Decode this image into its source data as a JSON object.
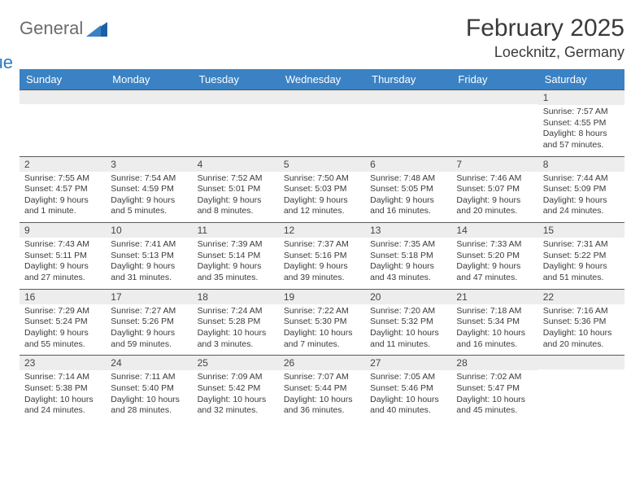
{
  "brand": {
    "part1": "General",
    "part2": "Blue"
  },
  "title": "February 2025",
  "location": "Loecknitz, Germany",
  "colors": {
    "header_bg": "#3a82c4",
    "header_text": "#ffffff",
    "daynum_bg": "#ededed",
    "rule": "#5a5a5a",
    "brand_gray": "#6c6c6c",
    "brand_blue": "#2f78bd"
  },
  "weekdays": [
    "Sunday",
    "Monday",
    "Tuesday",
    "Wednesday",
    "Thursday",
    "Friday",
    "Saturday"
  ],
  "weeks": [
    [
      {
        "n": "",
        "sr": "",
        "ss": "",
        "dl": ""
      },
      {
        "n": "",
        "sr": "",
        "ss": "",
        "dl": ""
      },
      {
        "n": "",
        "sr": "",
        "ss": "",
        "dl": ""
      },
      {
        "n": "",
        "sr": "",
        "ss": "",
        "dl": ""
      },
      {
        "n": "",
        "sr": "",
        "ss": "",
        "dl": ""
      },
      {
        "n": "",
        "sr": "",
        "ss": "",
        "dl": ""
      },
      {
        "n": "1",
        "sr": "Sunrise: 7:57 AM",
        "ss": "Sunset: 4:55 PM",
        "dl": "Daylight: 8 hours and 57 minutes."
      }
    ],
    [
      {
        "n": "2",
        "sr": "Sunrise: 7:55 AM",
        "ss": "Sunset: 4:57 PM",
        "dl": "Daylight: 9 hours and 1 minute."
      },
      {
        "n": "3",
        "sr": "Sunrise: 7:54 AM",
        "ss": "Sunset: 4:59 PM",
        "dl": "Daylight: 9 hours and 5 minutes."
      },
      {
        "n": "4",
        "sr": "Sunrise: 7:52 AM",
        "ss": "Sunset: 5:01 PM",
        "dl": "Daylight: 9 hours and 8 minutes."
      },
      {
        "n": "5",
        "sr": "Sunrise: 7:50 AM",
        "ss": "Sunset: 5:03 PM",
        "dl": "Daylight: 9 hours and 12 minutes."
      },
      {
        "n": "6",
        "sr": "Sunrise: 7:48 AM",
        "ss": "Sunset: 5:05 PM",
        "dl": "Daylight: 9 hours and 16 minutes."
      },
      {
        "n": "7",
        "sr": "Sunrise: 7:46 AM",
        "ss": "Sunset: 5:07 PM",
        "dl": "Daylight: 9 hours and 20 minutes."
      },
      {
        "n": "8",
        "sr": "Sunrise: 7:44 AM",
        "ss": "Sunset: 5:09 PM",
        "dl": "Daylight: 9 hours and 24 minutes."
      }
    ],
    [
      {
        "n": "9",
        "sr": "Sunrise: 7:43 AM",
        "ss": "Sunset: 5:11 PM",
        "dl": "Daylight: 9 hours and 27 minutes."
      },
      {
        "n": "10",
        "sr": "Sunrise: 7:41 AM",
        "ss": "Sunset: 5:13 PM",
        "dl": "Daylight: 9 hours and 31 minutes."
      },
      {
        "n": "11",
        "sr": "Sunrise: 7:39 AM",
        "ss": "Sunset: 5:14 PM",
        "dl": "Daylight: 9 hours and 35 minutes."
      },
      {
        "n": "12",
        "sr": "Sunrise: 7:37 AM",
        "ss": "Sunset: 5:16 PM",
        "dl": "Daylight: 9 hours and 39 minutes."
      },
      {
        "n": "13",
        "sr": "Sunrise: 7:35 AM",
        "ss": "Sunset: 5:18 PM",
        "dl": "Daylight: 9 hours and 43 minutes."
      },
      {
        "n": "14",
        "sr": "Sunrise: 7:33 AM",
        "ss": "Sunset: 5:20 PM",
        "dl": "Daylight: 9 hours and 47 minutes."
      },
      {
        "n": "15",
        "sr": "Sunrise: 7:31 AM",
        "ss": "Sunset: 5:22 PM",
        "dl": "Daylight: 9 hours and 51 minutes."
      }
    ],
    [
      {
        "n": "16",
        "sr": "Sunrise: 7:29 AM",
        "ss": "Sunset: 5:24 PM",
        "dl": "Daylight: 9 hours and 55 minutes."
      },
      {
        "n": "17",
        "sr": "Sunrise: 7:27 AM",
        "ss": "Sunset: 5:26 PM",
        "dl": "Daylight: 9 hours and 59 minutes."
      },
      {
        "n": "18",
        "sr": "Sunrise: 7:24 AM",
        "ss": "Sunset: 5:28 PM",
        "dl": "Daylight: 10 hours and 3 minutes."
      },
      {
        "n": "19",
        "sr": "Sunrise: 7:22 AM",
        "ss": "Sunset: 5:30 PM",
        "dl": "Daylight: 10 hours and 7 minutes."
      },
      {
        "n": "20",
        "sr": "Sunrise: 7:20 AM",
        "ss": "Sunset: 5:32 PM",
        "dl": "Daylight: 10 hours and 11 minutes."
      },
      {
        "n": "21",
        "sr": "Sunrise: 7:18 AM",
        "ss": "Sunset: 5:34 PM",
        "dl": "Daylight: 10 hours and 16 minutes."
      },
      {
        "n": "22",
        "sr": "Sunrise: 7:16 AM",
        "ss": "Sunset: 5:36 PM",
        "dl": "Daylight: 10 hours and 20 minutes."
      }
    ],
    [
      {
        "n": "23",
        "sr": "Sunrise: 7:14 AM",
        "ss": "Sunset: 5:38 PM",
        "dl": "Daylight: 10 hours and 24 minutes."
      },
      {
        "n": "24",
        "sr": "Sunrise: 7:11 AM",
        "ss": "Sunset: 5:40 PM",
        "dl": "Daylight: 10 hours and 28 minutes."
      },
      {
        "n": "25",
        "sr": "Sunrise: 7:09 AM",
        "ss": "Sunset: 5:42 PM",
        "dl": "Daylight: 10 hours and 32 minutes."
      },
      {
        "n": "26",
        "sr": "Sunrise: 7:07 AM",
        "ss": "Sunset: 5:44 PM",
        "dl": "Daylight: 10 hours and 36 minutes."
      },
      {
        "n": "27",
        "sr": "Sunrise: 7:05 AM",
        "ss": "Sunset: 5:46 PM",
        "dl": "Daylight: 10 hours and 40 minutes."
      },
      {
        "n": "28",
        "sr": "Sunrise: 7:02 AM",
        "ss": "Sunset: 5:47 PM",
        "dl": "Daylight: 10 hours and 45 minutes."
      },
      {
        "n": "",
        "sr": "",
        "ss": "",
        "dl": ""
      }
    ]
  ]
}
